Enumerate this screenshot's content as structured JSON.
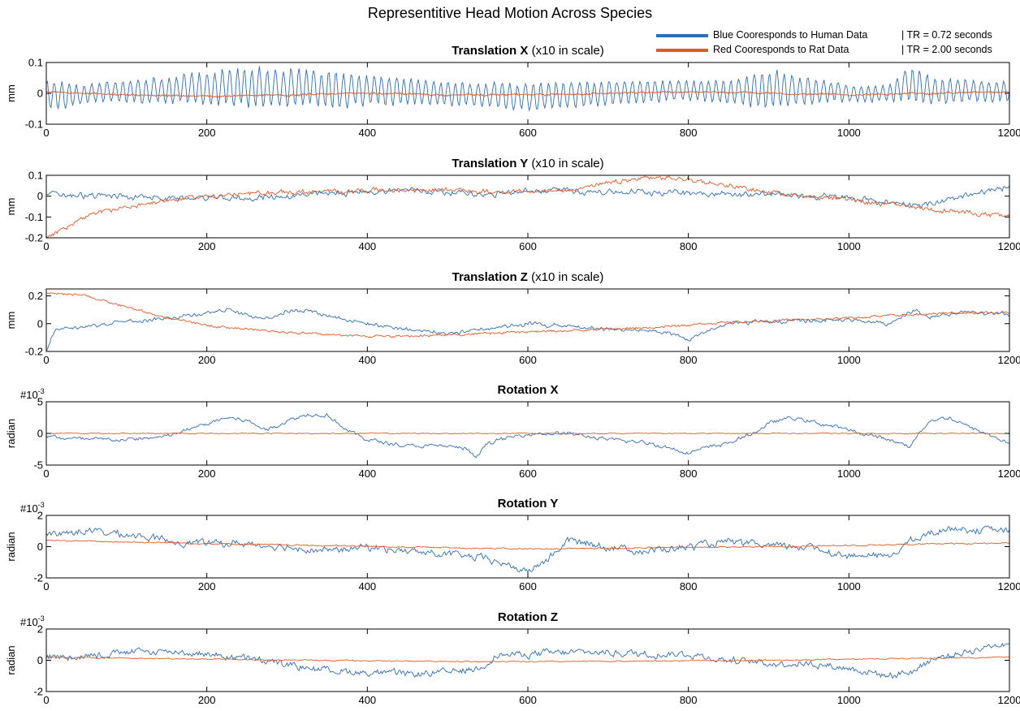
{
  "figure_title": "Representitive Head Motion Across Species",
  "legend": [
    {
      "label": "Blue Cooresponds to Human Data",
      "tr": "| TR = 0.72 seconds",
      "color": "#2f6db5"
    },
    {
      "label": "Red Cooresponds to Rat Data",
      "tr": "| TR = 2.00 seconds",
      "color": "#e05a26"
    }
  ],
  "colors": {
    "human": "#2f6db5",
    "rat": "#e05a26",
    "axis": "#000000"
  },
  "chart_data": [
    {
      "type": "line",
      "title_bold": "Translation X",
      "title_rest": "(x10 in scale)",
      "ylabel": "mm",
      "exponent": "",
      "xlim": [
        0,
        1200
      ],
      "ylim": [
        -0.1,
        0.1
      ],
      "xticks": [
        0,
        200,
        400,
        600,
        800,
        1000,
        1200
      ],
      "xtick_labels": [
        "0",
        "200",
        "400",
        "600",
        "800",
        "1000",
        "1200"
      ],
      "yticks": [
        -0.1,
        0,
        0.1
      ],
      "ytick_labels": [
        "-0.1",
        "0",
        "0.1"
      ],
      "series": [
        {
          "key": "human",
          "x": [
            0,
            50,
            100,
            150,
            200,
            250,
            300,
            350,
            400,
            450,
            500,
            550,
            600,
            650,
            700,
            750,
            800,
            850,
            900,
            950,
            1000,
            1050,
            1075,
            1100,
            1150,
            1200
          ],
          "y": [
            -0.01,
            0,
            0.005,
            0.01,
            0.015,
            0.02,
            0.02,
            0.015,
            0.01,
            0.005,
            0,
            -0.005,
            -0.01,
            -0.005,
            0,
            0.005,
            0.01,
            0.005,
            0.015,
            0.01,
            0,
            0,
            0.03,
            0.01,
            0.01,
            0.005
          ],
          "amp": [
            0.06,
            0.035,
            0.04,
            0.05,
            0.06,
            0.075,
            0.07,
            0.065,
            0.055,
            0.05,
            0.045,
            0.045,
            0.05,
            0.05,
            0.045,
            0.04,
            0.035,
            0.045,
            0.07,
            0.05,
            0.03,
            0.03,
            0.07,
            0.05,
            0.04,
            0.035
          ],
          "period": 9.5,
          "noise": 0.15
        },
        {
          "key": "rat",
          "x": [
            0,
            100,
            200,
            300,
            400,
            500,
            600,
            700,
            800,
            900,
            1000,
            1100,
            1200
          ],
          "y": [
            0.005,
            -0.005,
            -0.01,
            -0.005,
            0,
            -0.005,
            -0.005,
            0,
            0.005,
            0,
            -0.005,
            0,
            0.005
          ],
          "amp": [
            0.005
          ],
          "period": 3,
          "noise": 0.6
        }
      ]
    },
    {
      "type": "line",
      "title_bold": "Translation Y",
      "title_rest": "(x10 in scale)",
      "ylabel": "mm",
      "exponent": "",
      "xlim": [
        0,
        1200
      ],
      "ylim": [
        -0.2,
        0.1
      ],
      "xticks": [
        0,
        200,
        400,
        600,
        800,
        1000,
        1200
      ],
      "xtick_labels": [
        "0",
        "200",
        "400",
        "600",
        "800",
        "1000",
        "1200"
      ],
      "yticks": [
        -0.2,
        -0.1,
        0,
        0.1
      ],
      "ytick_labels": [
        "-0.2",
        "-0.1",
        "0",
        "0.1"
      ],
      "series": [
        {
          "key": "human",
          "x": [
            0,
            50,
            100,
            150,
            200,
            250,
            300,
            350,
            400,
            450,
            500,
            550,
            600,
            650,
            700,
            750,
            800,
            850,
            900,
            950,
            1000,
            1050,
            1100,
            1150,
            1200
          ],
          "y": [
            0.01,
            0,
            0,
            -0.01,
            -0.01,
            -0.01,
            0,
            0.01,
            0.02,
            0.03,
            0.02,
            0.01,
            0.02,
            0.03,
            0.02,
            0.02,
            0.02,
            0.01,
            0.01,
            0,
            -0.01,
            -0.03,
            -0.04,
            0,
            0.05
          ],
          "amp": [
            0.02
          ],
          "period": 7,
          "noise": 0.8
        },
        {
          "key": "rat",
          "x": [
            0,
            25,
            50,
            75,
            100,
            150,
            200,
            250,
            300,
            350,
            400,
            450,
            500,
            550,
            600,
            650,
            700,
            750,
            800,
            850,
            900,
            950,
            1000,
            1050,
            1100,
            1150,
            1200
          ],
          "y": [
            -0.19,
            -0.15,
            -0.1,
            -0.07,
            -0.05,
            -0.02,
            0,
            0.01,
            0.02,
            0.02,
            0.03,
            0.03,
            0.03,
            0.02,
            0.02,
            0.03,
            0.06,
            0.09,
            0.08,
            0.05,
            0.02,
            0,
            -0.02,
            -0.04,
            -0.06,
            -0.08,
            -0.1
          ],
          "amp": [
            0.015
          ],
          "period": 4,
          "noise": 0.8
        }
      ]
    },
    {
      "type": "line",
      "title_bold": "Translation Z",
      "title_rest": "(x10 in scale)",
      "ylabel": "mm",
      "exponent": "",
      "xlim": [
        0,
        1200
      ],
      "ylim": [
        -0.2,
        0.25
      ],
      "xticks": [
        0,
        200,
        400,
        600,
        800,
        1000,
        1200
      ],
      "xtick_labels": [
        "0",
        "200",
        "400",
        "600",
        "800",
        "1000",
        "1200"
      ],
      "yticks": [
        -0.2,
        0,
        0.2
      ],
      "ytick_labels": [
        "-0.2",
        "0",
        "0.2"
      ],
      "series": [
        {
          "key": "human",
          "x": [
            0,
            10,
            50,
            100,
            150,
            200,
            225,
            250,
            275,
            300,
            325,
            350,
            400,
            450,
            500,
            550,
            600,
            650,
            700,
            750,
            780,
            800,
            820,
            850,
            900,
            950,
            1000,
            1050,
            1080,
            1100,
            1150,
            1200
          ],
          "y": [
            -0.2,
            -0.05,
            -0.02,
            0.02,
            0.04,
            0.08,
            0.1,
            0.06,
            0.04,
            0.09,
            0.1,
            0.06,
            0,
            -0.04,
            -0.07,
            -0.03,
            0,
            -0.02,
            -0.04,
            -0.05,
            -0.08,
            -0.12,
            -0.06,
            0,
            0.01,
            0.02,
            0.03,
            0,
            0.1,
            0.05,
            0.08,
            0.06
          ],
          "amp": [
            0.02
          ],
          "period": 6,
          "noise": 0.8
        },
        {
          "key": "rat",
          "x": [
            0,
            50,
            100,
            150,
            200,
            250,
            300,
            350,
            400,
            450,
            500,
            550,
            600,
            650,
            700,
            750,
            800,
            850,
            900,
            950,
            1000,
            1050,
            1100,
            1150,
            1200
          ],
          "y": [
            0.22,
            0.2,
            0.12,
            0.04,
            -0.01,
            -0.04,
            -0.06,
            -0.08,
            -0.09,
            -0.09,
            -0.08,
            -0.07,
            -0.06,
            -0.05,
            -0.04,
            -0.03,
            -0.01,
            0.01,
            0.02,
            0.03,
            0.04,
            0.06,
            0.07,
            0.08,
            0.08
          ],
          "amp": [
            0.012
          ],
          "period": 4,
          "noise": 0.8
        }
      ]
    },
    {
      "type": "line",
      "title_bold": "Rotation X",
      "title_rest": "",
      "ylabel": "radian",
      "exponent": "10",
      "exponent_power": "-3",
      "xlim": [
        0,
        1200
      ],
      "ylim": [
        -5,
        5
      ],
      "xticks": [
        0,
        200,
        400,
        600,
        800,
        1000,
        1200
      ],
      "xtick_labels": [
        "0",
        "200",
        "400",
        "600",
        "800",
        "1000",
        "1200"
      ],
      "yticks": [
        -5,
        0,
        5
      ],
      "ytick_labels": [
        "-5",
        "0",
        "5"
      ],
      "series": [
        {
          "key": "human",
          "x": [
            0,
            50,
            100,
            150,
            200,
            225,
            250,
            275,
            300,
            325,
            350,
            375,
            400,
            450,
            500,
            525,
            535,
            550,
            600,
            650,
            700,
            750,
            800,
            850,
            880,
            900,
            925,
            950,
            1000,
            1050,
            1075,
            1100,
            1125,
            1150,
            1200,
            1210
          ],
          "y": [
            -0.5,
            -1,
            -1,
            -0.5,
            1.5,
            2.5,
            2,
            0.5,
            2,
            3,
            3,
            0.5,
            -1,
            -2,
            -2,
            -2.5,
            -4,
            -1.5,
            0,
            0,
            -1,
            -1.5,
            -3,
            -1.5,
            0,
            1.5,
            2.5,
            2,
            0.5,
            -1,
            -2,
            2,
            2.5,
            1,
            -1.5,
            -4
          ],
          "amp": [
            0.4
          ],
          "period": 5,
          "noise": 0.9
        },
        {
          "key": "rat",
          "x": [
            0,
            600,
            1200
          ],
          "y": [
            0,
            0,
            0
          ],
          "amp": [
            0.1
          ],
          "period": 4,
          "noise": 0.9
        }
      ]
    },
    {
      "type": "line",
      "title_bold": "Rotation Y",
      "title_rest": "",
      "ylabel": "radian",
      "exponent": "10",
      "exponent_power": "-3",
      "xlim": [
        0,
        1200
      ],
      "ylim": [
        -2,
        2
      ],
      "xticks": [
        0,
        200,
        400,
        600,
        800,
        1000,
        1200
      ],
      "xtick_labels": [
        "0",
        "200",
        "400",
        "600",
        "800",
        "1000",
        "1200"
      ],
      "yticks": [
        -2,
        0,
        2
      ],
      "ytick_labels": [
        "-2",
        "0",
        "2"
      ],
      "series": [
        {
          "key": "human",
          "x": [
            0,
            50,
            100,
            150,
            200,
            250,
            300,
            350,
            400,
            450,
            500,
            550,
            575,
            600,
            625,
            650,
            700,
            750,
            800,
            850,
            900,
            950,
            1000,
            1050,
            1075,
            1100,
            1125,
            1150,
            1200
          ],
          "y": [
            0.8,
            1,
            0.8,
            0.4,
            0.2,
            0.2,
            0,
            -0.3,
            0,
            -0.3,
            -0.5,
            -0.8,
            -1.2,
            -1.6,
            -0.8,
            0.4,
            0,
            -0.3,
            0,
            0.3,
            0,
            0,
            -0.6,
            -0.6,
            0.3,
            0.8,
            1.2,
            1.1,
            1
          ],
          "amp": [
            0.3
          ],
          "period": 5,
          "noise": 0.9
        },
        {
          "key": "rat",
          "x": [
            0,
            300,
            600,
            900,
            1200
          ],
          "y": [
            0.4,
            0.1,
            -0.15,
            0,
            0.25
          ],
          "amp": [
            0.06
          ],
          "period": 4,
          "noise": 0.9
        }
      ]
    },
    {
      "type": "line",
      "title_bold": "Rotation Z",
      "title_rest": "",
      "ylabel": "radian",
      "exponent": "10",
      "exponent_power": "-3",
      "xlim": [
        0,
        1200
      ],
      "ylim": [
        -2,
        2
      ],
      "xticks": [
        0,
        200,
        400,
        600,
        800,
        1000,
        1200
      ],
      "xtick_labels": [
        "0",
        "200",
        "400",
        "600",
        "800",
        "1000",
        "1200"
      ],
      "yticks": [
        -2,
        0,
        2
      ],
      "ytick_labels": [
        "-2",
        "0",
        "2"
      ],
      "series": [
        {
          "key": "human",
          "x": [
            0,
            50,
            100,
            150,
            200,
            250,
            300,
            350,
            400,
            450,
            500,
            540,
            560,
            600,
            650,
            700,
            750,
            800,
            850,
            900,
            950,
            1000,
            1050,
            1080,
            1100,
            1150,
            1200
          ],
          "y": [
            0.2,
            0.3,
            0.5,
            0.6,
            0.4,
            0.1,
            -0.3,
            -0.6,
            -0.8,
            -0.9,
            -0.8,
            -0.5,
            0.3,
            0.4,
            0.5,
            0.5,
            0.4,
            0.4,
            0,
            -0.2,
            -0.2,
            -0.5,
            -1,
            -0.7,
            0,
            0.6,
            1.2
          ],
          "amp": [
            0.3
          ],
          "period": 5,
          "noise": 0.9
        },
        {
          "key": "rat",
          "x": [
            0,
            300,
            600,
            900,
            1200
          ],
          "y": [
            0.2,
            0,
            -0.1,
            0,
            0.2
          ],
          "amp": [
            0.05
          ],
          "period": 4,
          "noise": 0.9
        }
      ]
    }
  ]
}
